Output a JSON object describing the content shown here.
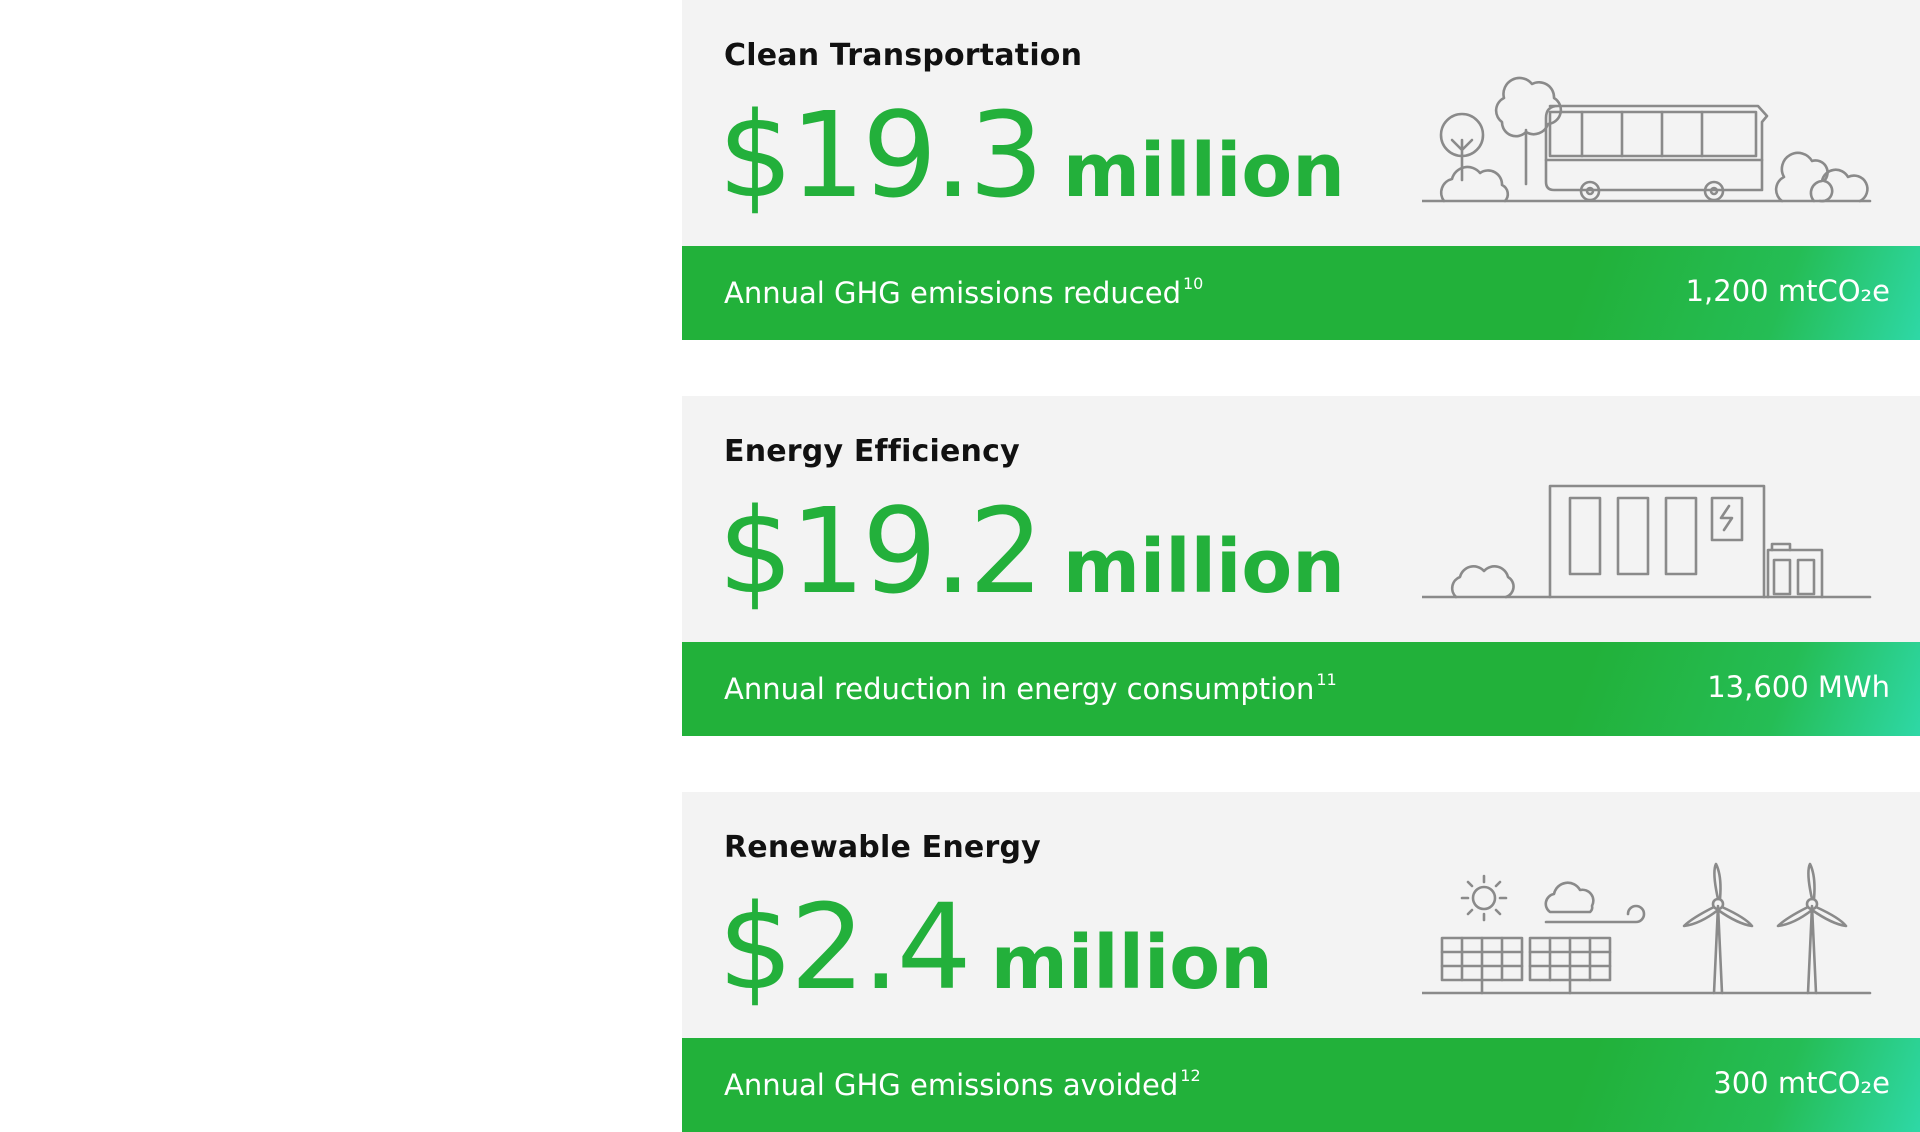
{
  "cards": [
    {
      "title": "Clean Transportation",
      "amount": "$19.3",
      "unit": "million",
      "metric_label": "Annual GHG emissions reduced",
      "footnote": "10",
      "metric_value": "1,200 mtCO₂e",
      "illustration": "bus-trees-illustration"
    },
    {
      "title": "Energy Efficiency",
      "amount": "$19.2",
      "unit": "million",
      "metric_label": "Annual reduction in energy consumption",
      "footnote": "11",
      "metric_value": "13,600 MWh",
      "illustration": "building-battery-illustration"
    },
    {
      "title": "Renewable Energy",
      "amount": "$2.4",
      "unit": "million",
      "metric_label": "Annual GHG emissions avoided",
      "footnote": "12",
      "metric_value": "300 mtCO₂e",
      "illustration": "solar-wind-illustration"
    }
  ],
  "colors": {
    "accent_green": "#23b03b",
    "card_background": "#f3f3f3",
    "bar_gradient_end": "#2ed8a6",
    "illustration_stroke": "#8a8a8a"
  }
}
